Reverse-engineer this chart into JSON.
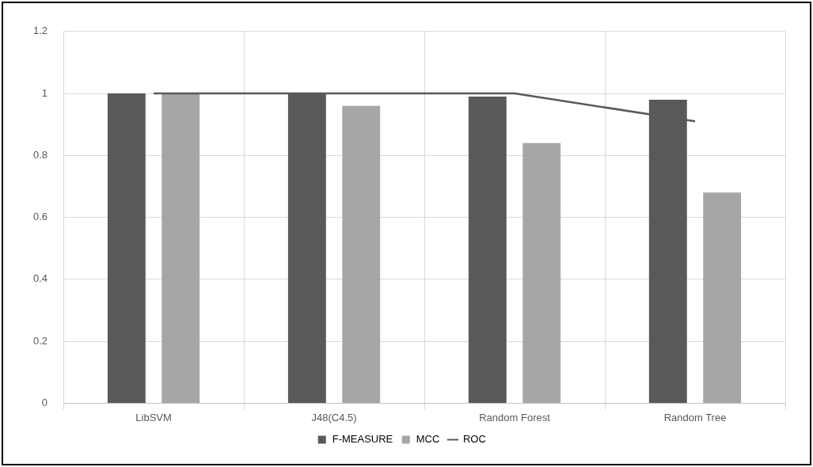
{
  "chart_data": {
    "type": "bar",
    "categories": [
      "LibSVM",
      "J48(C4.5)",
      "Random Forest",
      "Random Tree"
    ],
    "series": [
      {
        "name": "F-MEASURE",
        "color": "#595959",
        "values": [
          1,
          1,
          0.99,
          0.98
        ]
      },
      {
        "name": "MCC",
        "color": "#a6a6a6",
        "values": [
          1,
          0.96,
          0.84,
          0.68
        ]
      },
      {
        "name": "ROC",
        "type": "line",
        "color": "#595959",
        "values": [
          1,
          1,
          1,
          0.91
        ]
      }
    ],
    "ylim": [
      0,
      1.2
    ],
    "yticks": [
      0,
      0.2,
      0.4,
      0.6,
      0.8,
      1,
      1.2
    ],
    "grid": true,
    "legend": "bottom",
    "marker": "none",
    "line_style": "solid"
  }
}
